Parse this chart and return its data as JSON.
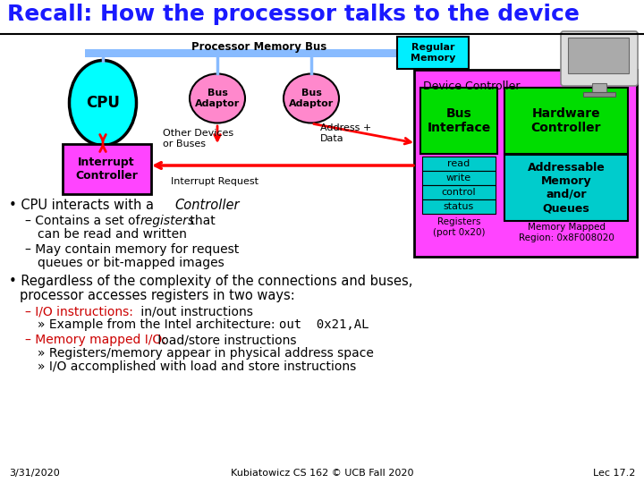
{
  "title": "Recall: How the processor talks to the device",
  "title_color": "#1a1aff",
  "bg_color": "#ffffff",
  "footer_left": "3/31/2020",
  "footer_center": "Kubiatowicz CS 162 © UCB Fall 2020",
  "footer_right": "Lec 17.2",
  "diagram": {
    "cpu_circle_color": "#00ffff",
    "cpu_text": "CPU",
    "interrupt_box_color": "#ff44ff",
    "interrupt_text": "Interrupt\nController",
    "bus_label": "Processor Memory Bus",
    "bus_bar_color": "#88bbff",
    "regular_memory_color": "#00eeff",
    "regular_memory_text": "Regular\nMemory",
    "bus_adaptor_color": "#ff88cc",
    "bus_adaptor_text": "Bus\nAdaptor",
    "other_devices_text": "Other Devices\nor Buses",
    "address_data_text": "Address +\nData",
    "interrupt_request_text": "Interrupt Request",
    "device_controller_color": "#ff44ff",
    "device_controller_text": "Device Controller",
    "bus_interface_color": "#00dd00",
    "bus_interface_text": "Bus\nInterface",
    "hardware_controller_color": "#00dd00",
    "hardware_controller_text": "Hardware\nController",
    "registers_box_color": "#00cccc",
    "registers_labels": [
      "read",
      "write",
      "control",
      "status"
    ],
    "registers_text": "Registers\n(port 0x20)",
    "addressable_memory_color": "#00cccc",
    "addressable_memory_text": "Addressable\nMemory\nand/or\nQueues",
    "memory_mapped_text": "Memory Mapped\nRegion: 0x8F008020"
  },
  "title_fontsize": 18,
  "body_fontsize": 10.5,
  "sub_fontsize": 10,
  "footer_fontsize": 8
}
